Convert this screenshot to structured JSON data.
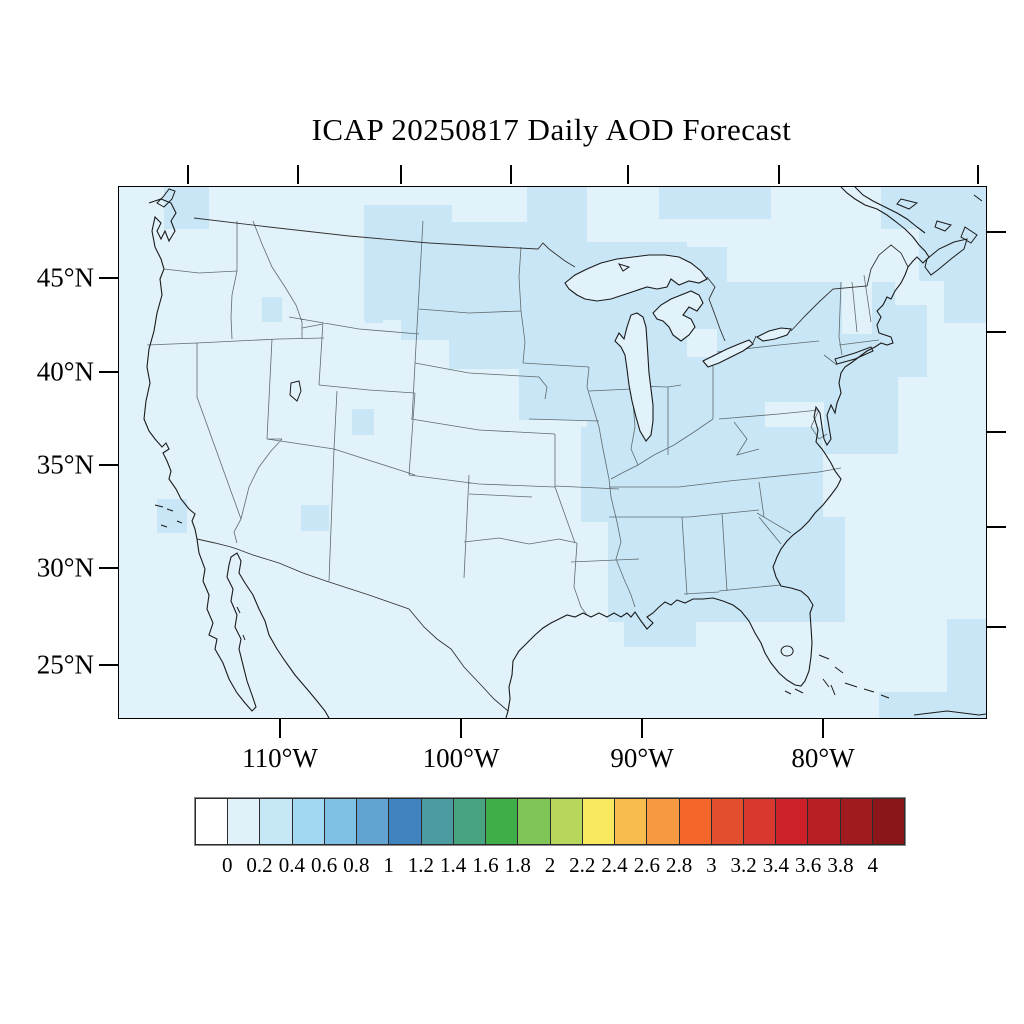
{
  "title": "ICAP 20250817 Daily AOD Forecast",
  "map": {
    "description": "Filled-contour aerosol optical depth forecast over the contiguous United States, northern Mexico and southeastern Canada",
    "base_fill": "#e2f2fb",
    "shade_fill": "#c8e6f6",
    "coast_color": "#1a1a1a",
    "state_line_color": "#5f6b70",
    "national_border_color": "#333333",
    "y_axis": {
      "labels": [
        "45°N",
        "40°N",
        "35°N",
        "30°N",
        "25°N"
      ]
    },
    "x_axis": {
      "labels": [
        "110°W",
        "100°W",
        "90°W",
        "80°W"
      ]
    }
  },
  "colorbar": {
    "labels": [
      "0",
      "0.2",
      "0.4",
      "0.6",
      "0.8",
      "1",
      "1.2",
      "1.4",
      "1.6",
      "1.8",
      "2",
      "2.2",
      "2.4",
      "2.6",
      "2.8",
      "3",
      "3.2",
      "3.4",
      "3.6",
      "3.8",
      "4"
    ],
    "colors": [
      "#ffffff",
      "#e0f1f9",
      "#c6e7f5",
      "#a2d8f1",
      "#7fc1e5",
      "#61a4d2",
      "#3f83bf",
      "#4b9ba0",
      "#47a380",
      "#3fae49",
      "#7fc557",
      "#b7d75c",
      "#f8e95e",
      "#f7bb4e",
      "#f59a40",
      "#f4662b",
      "#e34f2e",
      "#d83830",
      "#ce2029",
      "#b71f24",
      "#a01b1f",
      "#8a161a"
    ]
  },
  "chart_data": {
    "type": "heatmap",
    "title": "ICAP 20250817 Daily AOD Forecast",
    "variable": "Aerosol Optical Depth (AOD)",
    "scale_ticks": [
      0,
      0.2,
      0.4,
      0.6,
      0.8,
      1,
      1.2,
      1.4,
      1.6,
      1.8,
      2,
      2.2,
      2.4,
      2.6,
      2.8,
      3,
      3.2,
      3.4,
      3.6,
      3.8,
      4
    ],
    "lat_ticks_deg_north": [
      45,
      40,
      35,
      30,
      25
    ],
    "lon_ticks_deg_west": [
      110,
      100,
      90,
      80
    ],
    "observed_range": "Most of the domain is in the 0–0.2 AOD bin; patches of 0.2–0.4 over the northern plains (MT/ND/SD/MN/WI), the Midwest–Southeast corridor (IL/IN/OH/KY/TN/MS/AL/GA, SC coast), the Northeast (PA/NY/New England) and nearby Atlantic, Puget Sound, southern California coast, and the far northeast corner"
  }
}
